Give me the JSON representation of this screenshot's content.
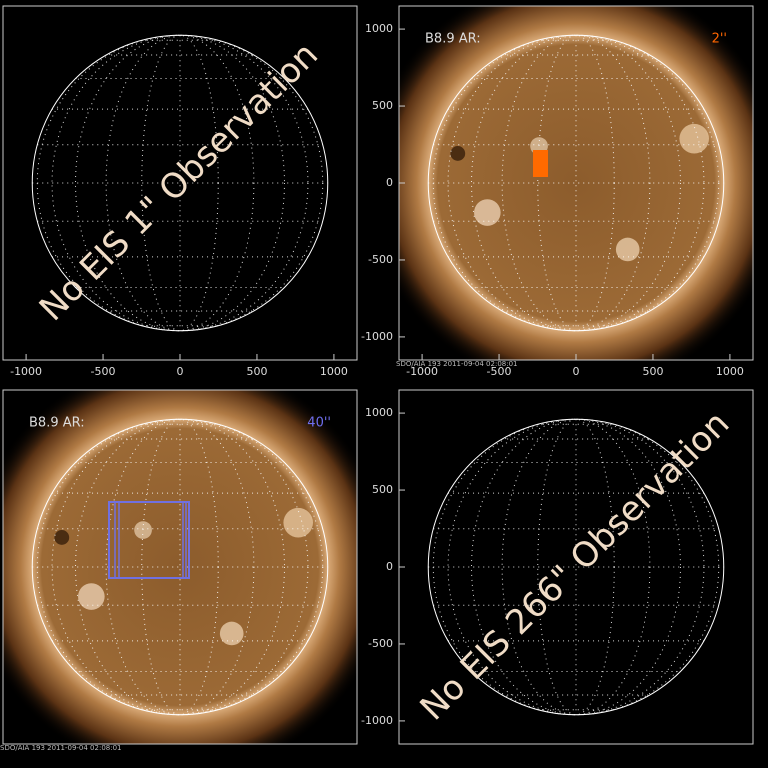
{
  "chart_data": [
    {
      "type": "blank",
      "annotation": "No EIS 1\" Observation",
      "xlim": [
        -1150,
        1150
      ],
      "ylim": [
        -1150,
        1150
      ],
      "xticks": [
        -1000,
        -500,
        0,
        500,
        1000
      ],
      "yticks": []
    },
    {
      "type": "image",
      "title": "B8.9 AR:",
      "annotation": "2''",
      "annotation_color": "#ff6600",
      "footer": "SDO/AIA 193    2011-09-04 02:08:01",
      "xlim": [
        -1150,
        1150
      ],
      "ylim": [
        -1150,
        1150
      ],
      "xticks": [
        -1000,
        -500,
        0,
        500,
        1000
      ],
      "yticks": [
        -1000,
        -500,
        0,
        500,
        1000
      ]
    },
    {
      "type": "image",
      "title": "B8.9 AR:",
      "annotation": "40''",
      "annotation_color": "#6f6fef",
      "footer": "SDO/AIA 193    2011-09-04 02:08:01",
      "xlim": [
        -1150,
        1150
      ],
      "ylim": [
        -1150,
        1150
      ],
      "xticks": [],
      "yticks": []
    },
    {
      "type": "blank",
      "annotation": "No EIS 266\" Observation",
      "xlim": [
        -1150,
        1150
      ],
      "ylim": [
        -1150,
        1150
      ],
      "xticks": [],
      "yticks": [
        -1000,
        -500,
        0,
        500,
        1000
      ]
    }
  ]
}
